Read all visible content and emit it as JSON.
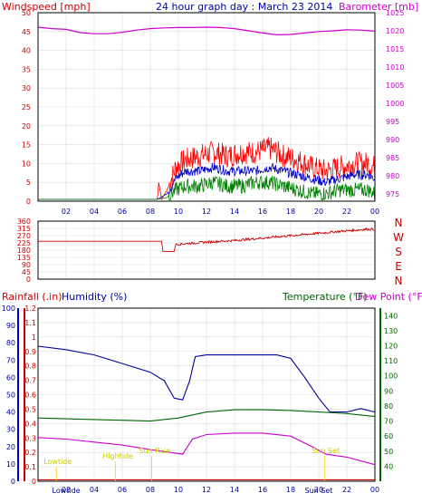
{
  "header": {
    "windspeed_label": "Windspeed [mph]",
    "title": "24 hour graph day : March 23 2014",
    "barometer_label": "Barometer [mb]"
  },
  "labels": {
    "rainfall": "Rainfall (.in)",
    "humidity": "Humidity (%)",
    "temperature": "Temperature (°F)",
    "dewpoint": "Dew Point (°F)"
  },
  "colors": {
    "wind": "#ff0000",
    "gust_avg": "#0000cc",
    "wind_min": "#008000",
    "baro": "#cc00cc",
    "dir": "#cc0000",
    "rain": "#cc0000",
    "humidity": "#000099",
    "temperature": "#006600",
    "dewpoint": "#cc00cc",
    "events": "#ffcc00",
    "events_text": "#cccc00"
  },
  "chart_data": [
    {
      "id": "wind-pressure",
      "type": "line",
      "x_ticks": [
        "02",
        "04",
        "06",
        "08",
        "10",
        "12",
        "14",
        "16",
        "18",
        "20",
        "22",
        "00"
      ],
      "y_left": {
        "label": "Windspeed [mph]",
        "ticks": [
          0,
          5,
          10,
          15,
          20,
          25,
          30,
          35,
          40,
          45,
          50
        ],
        "range": [
          0,
          50
        ]
      },
      "y_right": {
        "label": "Barometer [mb]",
        "ticks": [
          975,
          980,
          985,
          990,
          995,
          1000,
          1005,
          1010,
          1015,
          1020,
          1025
        ],
        "range": [
          973,
          1025
        ]
      },
      "series": [
        {
          "key": "wind_gust",
          "points": [
            [
              0,
              0.5
            ],
            [
              8.5,
              0.5
            ],
            [
              8.6,
              5
            ],
            [
              8.8,
              0.5
            ],
            [
              9.2,
              3
            ],
            [
              9.8,
              9
            ],
            [
              10.5,
              11
            ],
            [
              11.5,
              12
            ],
            [
              12.5,
              13
            ],
            [
              13.5,
              12
            ],
            [
              14.5,
              13
            ],
            [
              15.5,
              13
            ],
            [
              16.5,
              14
            ],
            [
              17.5,
              12
            ],
            [
              18.5,
              11
            ],
            [
              19.5,
              9
            ],
            [
              20.5,
              8
            ],
            [
              21.5,
              9
            ],
            [
              22.5,
              10
            ],
            [
              23.5,
              10
            ],
            [
              24,
              9
            ]
          ]
        },
        {
          "key": "wind_avg",
          "points": [
            [
              0,
              0.5
            ],
            [
              8.5,
              0.5
            ],
            [
              9.2,
              2
            ],
            [
              9.8,
              6
            ],
            [
              10.5,
              8
            ],
            [
              11.5,
              8
            ],
            [
              12.5,
              9
            ],
            [
              13.5,
              8
            ],
            [
              14.5,
              8
            ],
            [
              15.5,
              8
            ],
            [
              16.5,
              9
            ],
            [
              17.5,
              8
            ],
            [
              18.5,
              7
            ],
            [
              19.5,
              6
            ],
            [
              20.5,
              5
            ],
            [
              21.5,
              6
            ],
            [
              22.5,
              7
            ],
            [
              23.5,
              7
            ],
            [
              24,
              6
            ]
          ]
        },
        {
          "key": "wind_min",
          "points": [
            [
              0,
              0.5
            ],
            [
              8.5,
              0.5
            ],
            [
              9.2,
              1
            ],
            [
              9.8,
              3
            ],
            [
              10.5,
              4
            ],
            [
              11.5,
              4
            ],
            [
              12.5,
              5
            ],
            [
              13.5,
              4
            ],
            [
              14.5,
              4
            ],
            [
              15.5,
              5
            ],
            [
              16.5,
              5
            ],
            [
              17.5,
              4
            ],
            [
              18.5,
              3
            ],
            [
              19.5,
              2
            ],
            [
              20.5,
              2
            ],
            [
              21.5,
              3
            ],
            [
              22.5,
              3
            ],
            [
              23.5,
              3
            ],
            [
              24,
              2
            ]
          ]
        },
        {
          "key": "barometer",
          "points": [
            [
              0,
              1021
            ],
            [
              1,
              1020.6
            ],
            [
              2,
              1020.4
            ],
            [
              3,
              1019.5
            ],
            [
              4,
              1019.2
            ],
            [
              5,
              1019.2
            ],
            [
              6,
              1019.6
            ],
            [
              7,
              1020.2
            ],
            [
              8,
              1020.6
            ],
            [
              9,
              1020.8
            ],
            [
              10,
              1020.9
            ],
            [
              11,
              1020.9
            ],
            [
              12,
              1021
            ],
            [
              13,
              1020.9
            ],
            [
              14,
              1020.6
            ],
            [
              15,
              1020
            ],
            [
              16,
              1019.4
            ],
            [
              17,
              1018.9
            ],
            [
              18,
              1019
            ],
            [
              19,
              1019.4
            ],
            [
              20,
              1019.8
            ],
            [
              21,
              1020
            ],
            [
              22,
              1020.3
            ],
            [
              23,
              1020.2
            ],
            [
              24,
              1019.9
            ]
          ]
        }
      ]
    },
    {
      "id": "wind-direction",
      "type": "line",
      "x_ticks": [
        "02",
        "04",
        "06",
        "08",
        "10",
        "12",
        "14",
        "16",
        "18",
        "20",
        "22",
        "00"
      ],
      "y_left": {
        "ticks": [
          0,
          45,
          90,
          135,
          180,
          225,
          270,
          315,
          360
        ],
        "range": [
          0,
          360
        ]
      },
      "y_right_labels": [
        "N",
        "W",
        "S",
        "E",
        "N"
      ],
      "series": [
        {
          "key": "direction",
          "points": [
            [
              0,
              235
            ],
            [
              8.8,
              235
            ],
            [
              8.9,
              172
            ],
            [
              9.7,
              172
            ],
            [
              9.8,
              215
            ],
            [
              12,
              230
            ],
            [
              14,
              240
            ],
            [
              16,
              255
            ],
            [
              18,
              270
            ],
            [
              20,
              285
            ],
            [
              22,
              300
            ],
            [
              23.5,
              310
            ],
            [
              24,
              310
            ]
          ]
        }
      ]
    },
    {
      "id": "rain-humidity-temp",
      "type": "line",
      "x_ticks": [
        "02",
        "04",
        "06",
        "08",
        "10",
        "12",
        "14",
        "16",
        "18",
        "20",
        "22",
        "00"
      ],
      "y_rain": {
        "label": "Rainfall (.in)",
        "ticks": [
          0,
          0.1,
          0.2,
          0.3,
          0.4,
          0.5,
          0.6,
          0.7,
          0.8,
          0.9,
          1,
          1.1,
          1.2
        ],
        "range": [
          0,
          1.2
        ]
      },
      "y_humidity": {
        "label": "Humidity (%)",
        "ticks": [
          0,
          10,
          20,
          30,
          40,
          50,
          60,
          70,
          80,
          90,
          100
        ],
        "range": [
          0,
          100
        ]
      },
      "y_temp": {
        "label": "Temperature (°F)",
        "ticks": [
          40,
          50,
          60,
          70,
          80,
          90,
          100,
          110,
          120,
          130,
          140
        ],
        "range": [
          30,
          145
        ]
      },
      "series": [
        {
          "key": "humidity",
          "points": [
            [
              0,
              78
            ],
            [
              2,
              76
            ],
            [
              4,
              73
            ],
            [
              6,
              68
            ],
            [
              8,
              63
            ],
            [
              9,
              58
            ],
            [
              9.7,
              48
            ],
            [
              10.3,
              47
            ],
            [
              10.8,
              58
            ],
            [
              11.2,
              72
            ],
            [
              12,
              73
            ],
            [
              13,
              73
            ],
            [
              14,
              73
            ],
            [
              15,
              73
            ],
            [
              16,
              73
            ],
            [
              17,
              73
            ],
            [
              18,
              71
            ],
            [
              19,
              60
            ],
            [
              20,
              48
            ],
            [
              20.8,
              40
            ],
            [
              22,
              40
            ],
            [
              23,
              42
            ],
            [
              24,
              40
            ]
          ]
        },
        {
          "key": "temperature",
          "points": [
            [
              0,
              72
            ],
            [
              2,
              71.5
            ],
            [
              4,
              71
            ],
            [
              6,
              70.5
            ],
            [
              8,
              70
            ],
            [
              10,
              72
            ],
            [
              12,
              76
            ],
            [
              14,
              77.5
            ],
            [
              16,
              77.5
            ],
            [
              18,
              77
            ],
            [
              20,
              76
            ],
            [
              22,
              75
            ],
            [
              24,
              73
            ]
          ]
        },
        {
          "key": "dewpoint",
          "points": [
            [
              0,
              59
            ],
            [
              2,
              58
            ],
            [
              4,
              56
            ],
            [
              6,
              54
            ],
            [
              8,
              51
            ],
            [
              9.5,
              49
            ],
            [
              10.3,
              48
            ],
            [
              11,
              58
            ],
            [
              12,
              61
            ],
            [
              14,
              62
            ],
            [
              16,
              62
            ],
            [
              18,
              60
            ],
            [
              19.5,
              53
            ],
            [
              20.5,
              48
            ],
            [
              22,
              46
            ],
            [
              24,
              41
            ]
          ]
        },
        {
          "key": "rain",
          "points": [
            [
              0,
              0.01
            ],
            [
              24,
              0.01
            ]
          ]
        }
      ],
      "annotations": [
        {
          "text": "Lowtide",
          "x": 0.4
        },
        {
          "text": "Hightide",
          "x": 4.6
        },
        {
          "text": "Sun Rise",
          "x": 7.2
        },
        {
          "text": "Sun Set",
          "x": 19.5
        },
        {
          "text": "Lowtide",
          "x": 1.0
        },
        {
          "text": "Sun Set",
          "x": 19.0
        }
      ]
    }
  ]
}
